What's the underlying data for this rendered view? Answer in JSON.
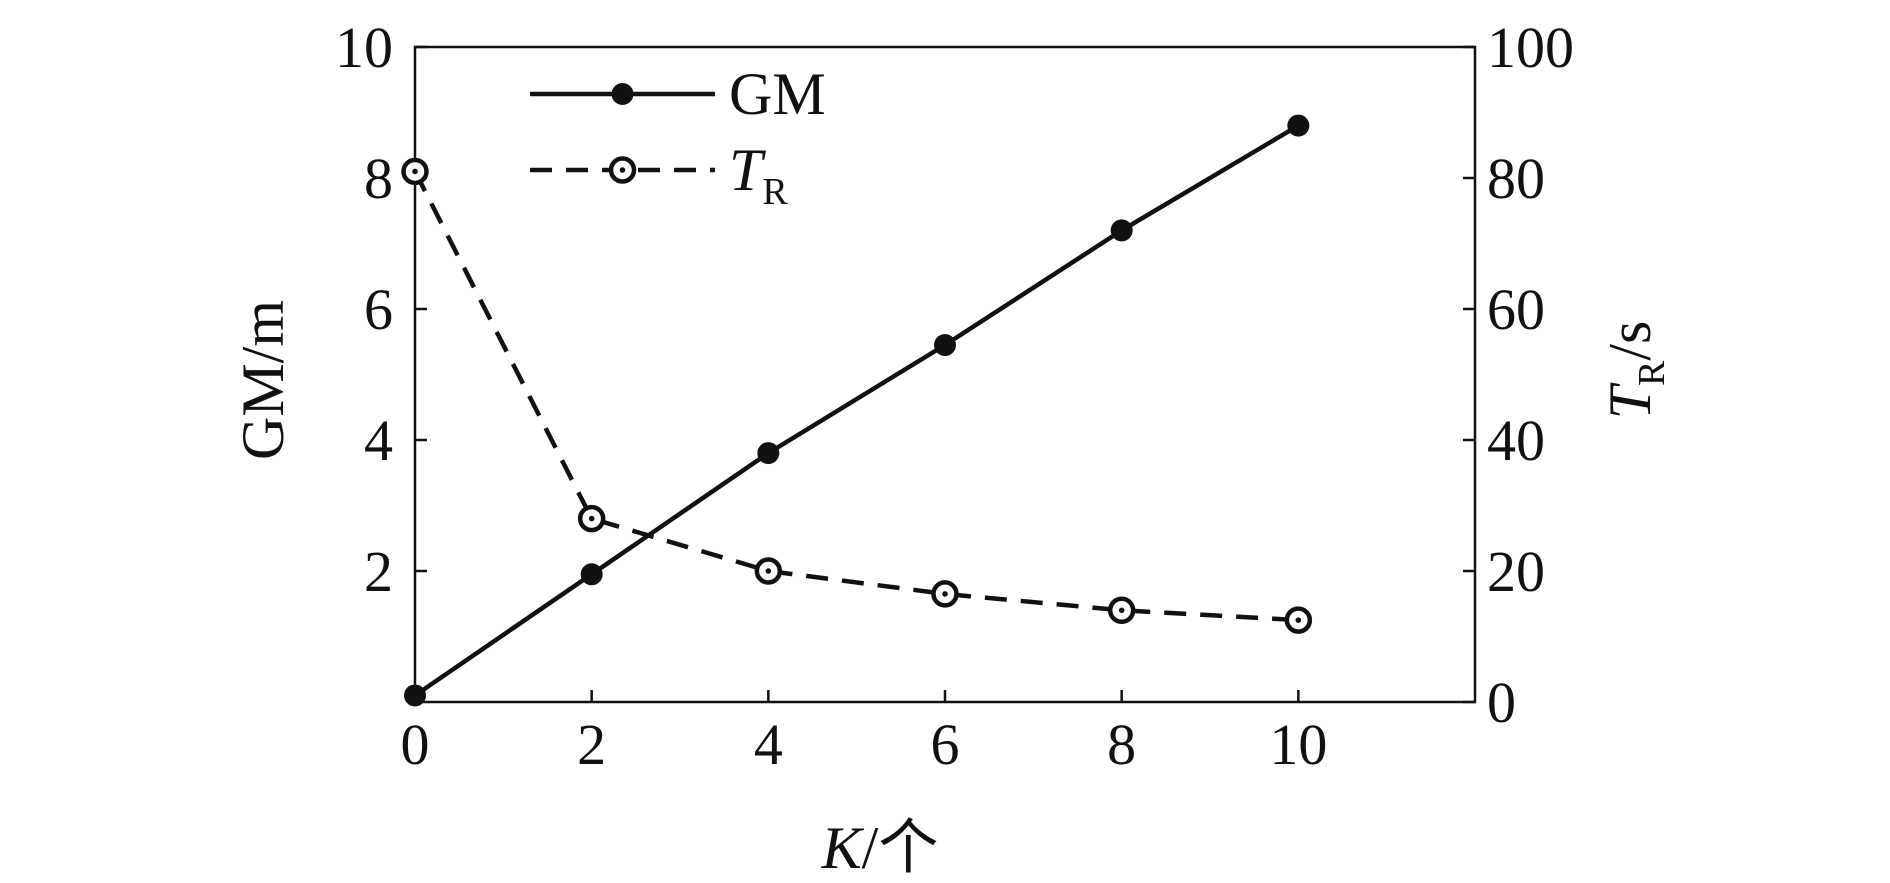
{
  "chart_data": {
    "type": "line",
    "x": [
      0,
      2,
      4,
      6,
      8,
      10
    ],
    "xlim": [
      0,
      12
    ],
    "xticks": [
      0,
      2,
      4,
      6,
      8,
      10
    ],
    "xlabel": {
      "main": "K",
      "suffix": "/个"
    },
    "ylim_left": [
      0,
      10
    ],
    "yticks_left": [
      2,
      4,
      6,
      8,
      10
    ],
    "ylabel_left": "GM/m",
    "ylim_right": [
      0,
      100
    ],
    "yticks_right": [
      0,
      20,
      40,
      60,
      80,
      100
    ],
    "ylabel_right": {
      "main": "T",
      "sub": "R",
      "suffix": "/s"
    },
    "grid": false,
    "legend_position": "top-left",
    "series": [
      {
        "name": "GM",
        "axis": "left",
        "style": "solid",
        "marker": "filled-circle",
        "values": [
          0.1,
          1.95,
          3.8,
          5.45,
          7.2,
          8.8
        ]
      },
      {
        "name": "T",
        "name_sub": "R",
        "axis": "right",
        "style": "dashed",
        "marker": "open-circle",
        "values": [
          81,
          28,
          20,
          16.5,
          14,
          12.5
        ]
      }
    ],
    "colors": {
      "line": "#111111",
      "background": "#ffffff"
    }
  }
}
